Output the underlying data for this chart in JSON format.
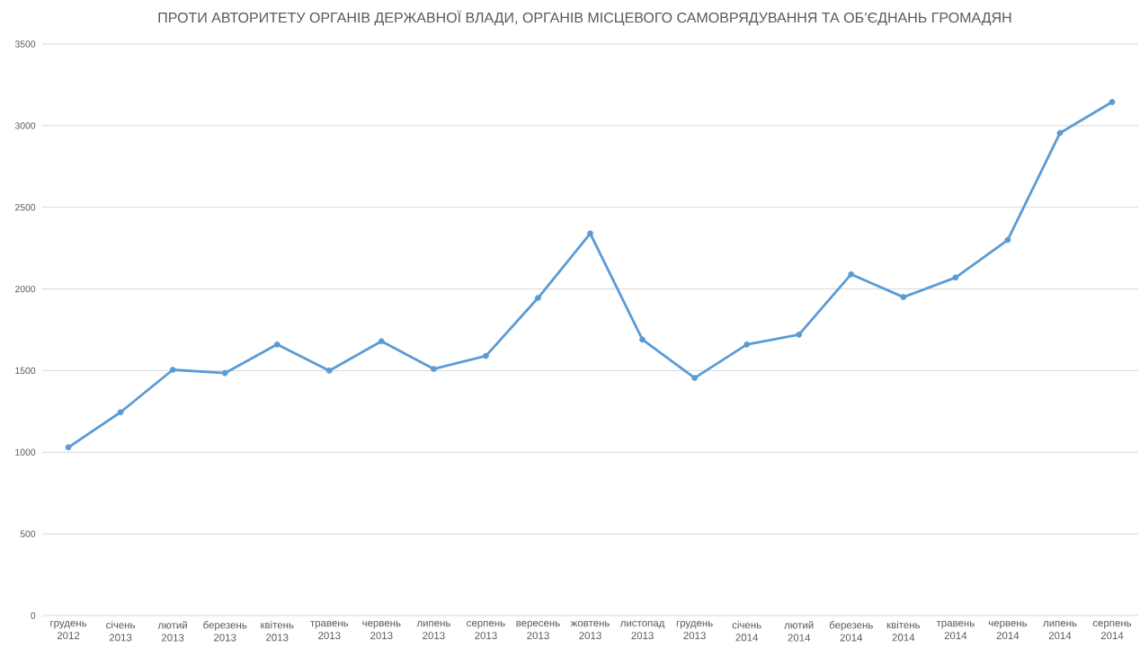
{
  "chart_data": {
    "type": "line",
    "title": "ПРОТИ АВТОРИТЕТУ ОРГАНІВ ДЕРЖАВНОЇ ВЛАДИ, ОРГАНІВ МІСЦЕВОГО САМОВРЯДУВАННЯ ТА ОБ’ЄДНАНЬ ГРОМАДЯН",
    "categories": [
      "грудень 2012",
      "січень 2013",
      "лютий 2013",
      "березень 2013",
      "квітень 2013",
      "травень 2013",
      "червень 2013",
      "липень 2013",
      "серпень 2013",
      "вересень 2013",
      "жовтень 2013",
      "листопад 2013",
      "грудень 2013",
      "січень 2014",
      "лютий 2014",
      "березень 2014",
      "квітень 2014",
      "травень 2014",
      "червень 2014",
      "липень 2014",
      "серпень 2014"
    ],
    "series": [
      {
        "color": "#5b9bd5",
        "values": [
          1030,
          1245,
          1505,
          1485,
          1660,
          1500,
          1680,
          1510,
          1590,
          1945,
          2340,
          1690,
          1455,
          1660,
          1720,
          2090,
          1950,
          2070,
          2300,
          2955,
          3145
        ]
      }
    ],
    "ylim": [
      0,
      3500
    ],
    "yticks": [
      0,
      500,
      1000,
      1500,
      2000,
      2500,
      3000,
      3500
    ],
    "grid": "y",
    "marker": "circle",
    "line_style": "solid"
  }
}
